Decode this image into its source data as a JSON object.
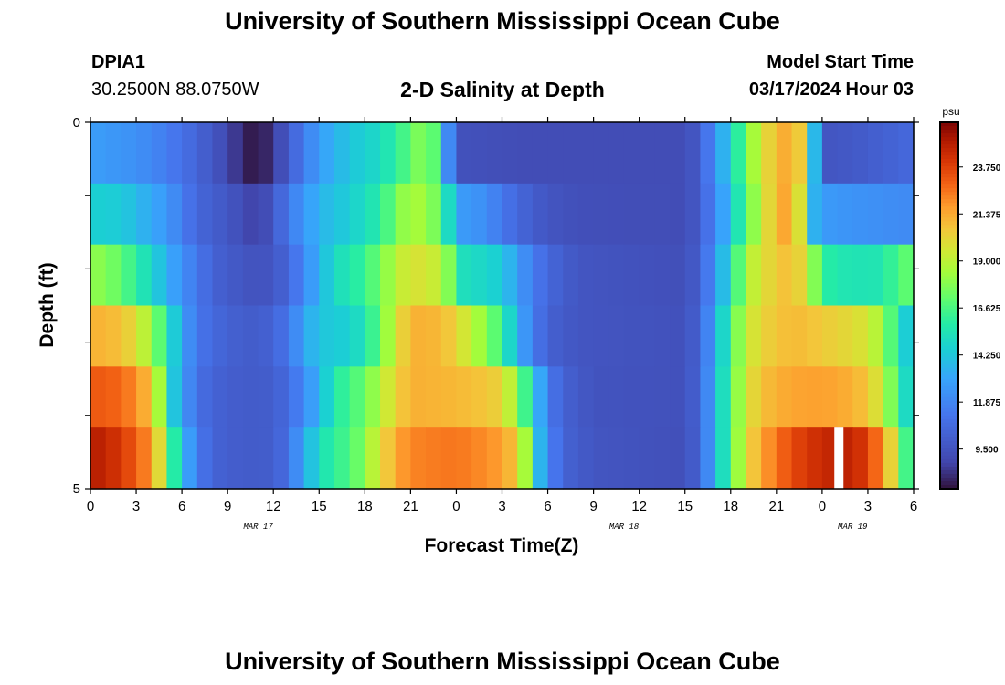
{
  "header": {
    "title": "University of Southern Mississippi Ocean Cube",
    "station_id": "DPIA1",
    "station_coords": "30.2500N  88.0750W",
    "plot_title": "2-D Salinity at Depth",
    "model_start_label": "Model Start Time",
    "model_start_value": "03/17/2024 Hour 03"
  },
  "footer": {
    "title": "University of Southern Mississippi Ocean Cube"
  },
  "chart_data": {
    "type": "heatmap",
    "title": "2-D Salinity at Depth",
    "xlabel": "Forecast Time(Z)",
    "ylabel": "Depth (ft)",
    "x_tick_labels": [
      "0",
      "3",
      "6",
      "9",
      "12",
      "15",
      "18",
      "21",
      "0",
      "3",
      "6",
      "9",
      "12",
      "15",
      "18",
      "21",
      "0",
      "3",
      "6"
    ],
    "x_hours": [
      0,
      3,
      6,
      9,
      12,
      15,
      18,
      21,
      24,
      27,
      30,
      33,
      36,
      39,
      42,
      45,
      48,
      51,
      54
    ],
    "date_labels": [
      {
        "label": "MAR 17",
        "hour": 11
      },
      {
        "label": "MAR 18",
        "hour": 35
      },
      {
        "label": "MAR 19",
        "hour": 50
      }
    ],
    "y_tick_labels": [
      {
        "label": "0",
        "depth": 0
      },
      {
        "label": "5",
        "depth": 5
      }
    ],
    "ylim": [
      0,
      5
    ],
    "xlim": [
      0,
      54
    ],
    "colorbar": {
      "unit": "psu",
      "ticks": [
        "23.750",
        "21.375",
        "19.000",
        "16.625",
        "14.250",
        "11.875",
        "9.500"
      ],
      "tick_values": [
        23.75,
        21.375,
        19.0,
        16.625,
        14.25,
        11.875,
        9.5
      ],
      "range": [
        7.5,
        26.0
      ]
    },
    "series": [
      {
        "depth_band": 1,
        "keyframes": [
          [
            0,
            12.8
          ],
          [
            3,
            12.3
          ],
          [
            5,
            11.5
          ],
          [
            7,
            10.4
          ],
          [
            9,
            9.0
          ],
          [
            10,
            8.0
          ],
          [
            11,
            7.5
          ],
          [
            12,
            8.5
          ],
          [
            13,
            10.0
          ],
          [
            15,
            12.8
          ],
          [
            17,
            14.2
          ],
          [
            19,
            15.0
          ],
          [
            20.5,
            16.5
          ],
          [
            21.5,
            17.6
          ],
          [
            22,
            18.5
          ],
          [
            22.5,
            17.0
          ],
          [
            23,
            14.5
          ],
          [
            23.5,
            12.0
          ],
          [
            24,
            9.4
          ],
          [
            28,
            9.2
          ],
          [
            35,
            9.2
          ],
          [
            39,
            9.2
          ],
          [
            40,
            10.0
          ],
          [
            41,
            12.5
          ],
          [
            42,
            14.5
          ],
          [
            43,
            17.5
          ],
          [
            44,
            19.5
          ],
          [
            45,
            21.0
          ],
          [
            46,
            21.5
          ],
          [
            46.5,
            20.5
          ],
          [
            47,
            17.5
          ],
          [
            47.4,
            14.5
          ],
          [
            47.8,
            11.5
          ],
          [
            48,
            9.6
          ],
          [
            50,
            9.8
          ],
          [
            52,
            10.2
          ],
          [
            54,
            10.6
          ]
        ]
      },
      {
        "depth_band": 2,
        "keyframes": [
          [
            0,
            14.6
          ],
          [
            2,
            14.4
          ],
          [
            3,
            13.8
          ],
          [
            5,
            12.6
          ],
          [
            6,
            11.5
          ],
          [
            7,
            10.5
          ],
          [
            9,
            9.7
          ],
          [
            10,
            9.2
          ],
          [
            11,
            8.5
          ],
          [
            11.5,
            9.2
          ],
          [
            12,
            9.8
          ],
          [
            13,
            11.3
          ],
          [
            14,
            12.6
          ],
          [
            15,
            13.6
          ],
          [
            17,
            14.5
          ],
          [
            19,
            15.8
          ],
          [
            20,
            17.5
          ],
          [
            21,
            18.6
          ],
          [
            22,
            18.3
          ],
          [
            23,
            17.0
          ],
          [
            23.5,
            15.0
          ],
          [
            24,
            12.8
          ],
          [
            26,
            12.2
          ],
          [
            27,
            11.2
          ],
          [
            29,
            10.0
          ],
          [
            30,
            9.6
          ],
          [
            32,
            9.3
          ],
          [
            39,
            9.2
          ],
          [
            40,
            10.0
          ],
          [
            41,
            12.0
          ],
          [
            42,
            14.0
          ],
          [
            43,
            17.0
          ],
          [
            44,
            19.0
          ],
          [
            45,
            21.2
          ],
          [
            46,
            21.6
          ],
          [
            47,
            18.0
          ],
          [
            47.5,
            13.5
          ],
          [
            48,
            12.7
          ],
          [
            50,
            12.4
          ],
          [
            52,
            12.2
          ],
          [
            54,
            12.0
          ]
        ]
      },
      {
        "depth_band": 3,
        "keyframes": [
          [
            0,
            18.0
          ],
          [
            1,
            17.8
          ],
          [
            2,
            17.0
          ],
          [
            3,
            16.0
          ],
          [
            4,
            14.8
          ],
          [
            5,
            13.5
          ],
          [
            6,
            12.3
          ],
          [
            7,
            11.3
          ],
          [
            8,
            10.3
          ],
          [
            9,
            9.9
          ],
          [
            11,
            9.4
          ],
          [
            12,
            9.7
          ],
          [
            13,
            10.5
          ],
          [
            14,
            12.0
          ],
          [
            15,
            13.5
          ],
          [
            16,
            15.0
          ],
          [
            17,
            15.6
          ],
          [
            18,
            16.2
          ],
          [
            19,
            17.5
          ],
          [
            20,
            18.8
          ],
          [
            21,
            19.8
          ],
          [
            22,
            19.6
          ],
          [
            23,
            19.0
          ],
          [
            24,
            16.5
          ],
          [
            24.5,
            15.2
          ],
          [
            26,
            14.8
          ],
          [
            27,
            14.4
          ],
          [
            28,
            12.8
          ],
          [
            29,
            11.5
          ],
          [
            30,
            10.5
          ],
          [
            32,
            9.6
          ],
          [
            39,
            9.3
          ],
          [
            40,
            10.2
          ],
          [
            41,
            12.5
          ],
          [
            42,
            15.2
          ],
          [
            43,
            18.5
          ],
          [
            44,
            19.8
          ],
          [
            46,
            21.0
          ],
          [
            47,
            19.5
          ],
          [
            48,
            16.0
          ],
          [
            49,
            15.6
          ],
          [
            50,
            15.4
          ],
          [
            52,
            15.5
          ],
          [
            53,
            16.8
          ],
          [
            54,
            17.2
          ]
        ]
      },
      {
        "depth_band": 4,
        "keyframes": [
          [
            0,
            21.2
          ],
          [
            2,
            20.8
          ],
          [
            3,
            19.8
          ],
          [
            4,
            18.2
          ],
          [
            5,
            15.8
          ],
          [
            6,
            13.0
          ],
          [
            7,
            11.2
          ],
          [
            9,
            10.2
          ],
          [
            11,
            9.9
          ],
          [
            12,
            10.4
          ],
          [
            13,
            11.2
          ],
          [
            14,
            13.0
          ],
          [
            15,
            14.2
          ],
          [
            17,
            14.6
          ],
          [
            18,
            15.4
          ],
          [
            19,
            17.2
          ],
          [
            20,
            19.5
          ],
          [
            21,
            21.2
          ],
          [
            23,
            21.0
          ],
          [
            24,
            20.2
          ],
          [
            25,
            19.0
          ],
          [
            26,
            17.8
          ],
          [
            27,
            16.2
          ],
          [
            28,
            13.5
          ],
          [
            29,
            11.5
          ],
          [
            30,
            10.2
          ],
          [
            32,
            9.6
          ],
          [
            39,
            9.4
          ],
          [
            40,
            10.4
          ],
          [
            41,
            13.2
          ],
          [
            42,
            16.5
          ],
          [
            43,
            19.2
          ],
          [
            44,
            20.2
          ],
          [
            46,
            21.0
          ],
          [
            48,
            20.5
          ],
          [
            50,
            20.0
          ],
          [
            51,
            19.6
          ],
          [
            52,
            18.2
          ],
          [
            53,
            15.5
          ],
          [
            54,
            13.5
          ]
        ]
      },
      {
        "depth_band": 5,
        "keyframes": [
          [
            0,
            23.2
          ],
          [
            1,
            23.0
          ],
          [
            2,
            22.8
          ],
          [
            3,
            22.0
          ],
          [
            4,
            20.6
          ],
          [
            4.5,
            18.5
          ],
          [
            5,
            15.5
          ],
          [
            6,
            12.8
          ],
          [
            7,
            11.0
          ],
          [
            8,
            10.3
          ],
          [
            10,
            9.9
          ],
          [
            12,
            10.0
          ],
          [
            13,
            10.8
          ],
          [
            14,
            12.0
          ],
          [
            15,
            13.6
          ],
          [
            16,
            15.6
          ],
          [
            17,
            16.5
          ],
          [
            18,
            17.2
          ],
          [
            19,
            18.8
          ],
          [
            20,
            20.2
          ],
          [
            21,
            21.2
          ],
          [
            24,
            21.0
          ],
          [
            26,
            20.6
          ],
          [
            27,
            20.2
          ],
          [
            28,
            18.0
          ],
          [
            29,
            14.8
          ],
          [
            30,
            11.5
          ],
          [
            31,
            10.2
          ],
          [
            33,
            9.5
          ],
          [
            39,
            9.4
          ],
          [
            40,
            10.5
          ],
          [
            41,
            13.5
          ],
          [
            42,
            16.8
          ],
          [
            43,
            19.5
          ],
          [
            44,
            20.8
          ],
          [
            46,
            21.5
          ],
          [
            48,
            21.6
          ],
          [
            50,
            21.2
          ],
          [
            51,
            20.6
          ],
          [
            52,
            19.2
          ],
          [
            53,
            16.2
          ],
          [
            54,
            13.8
          ]
        ]
      },
      {
        "depth_band": 6,
        "keyframes": [
          [
            0,
            25.0
          ],
          [
            1,
            24.6
          ],
          [
            2,
            24.0
          ],
          [
            3,
            23.0
          ],
          [
            4,
            21.8
          ],
          [
            4.5,
            20.0
          ],
          [
            5,
            17.6
          ],
          [
            6,
            14.0
          ],
          [
            7,
            11.5
          ],
          [
            8,
            10.3
          ],
          [
            10,
            9.9
          ],
          [
            12,
            10.0
          ],
          [
            13,
            11.0
          ],
          [
            14,
            13.2
          ],
          [
            15,
            15.0
          ],
          [
            16,
            16.2
          ],
          [
            17,
            16.5
          ],
          [
            18,
            18.0
          ],
          [
            19,
            19.8
          ],
          [
            20,
            21.4
          ],
          [
            21,
            22.2
          ],
          [
            24,
            22.5
          ],
          [
            26,
            22.0
          ],
          [
            27,
            21.6
          ],
          [
            28,
            20.5
          ],
          [
            28.5,
            18.5
          ],
          [
            29,
            15.2
          ],
          [
            30,
            12.0
          ],
          [
            31,
            10.3
          ],
          [
            33,
            9.6
          ],
          [
            39,
            9.3
          ],
          [
            40,
            10.5
          ],
          [
            41,
            13.5
          ],
          [
            42,
            16.8
          ],
          [
            43,
            19.8
          ],
          [
            44,
            21.5
          ],
          [
            46,
            23.5
          ],
          [
            48,
            24.5
          ],
          [
            50,
            24.8
          ],
          [
            51,
            23.6
          ],
          [
            52,
            22.0
          ],
          [
            53,
            18.5
          ],
          [
            54,
            14.5
          ]
        ]
      }
    ],
    "missing_data": [
      {
        "hour_start": 48.8,
        "hour_end": 49.4,
        "depth_band": 6
      }
    ]
  }
}
